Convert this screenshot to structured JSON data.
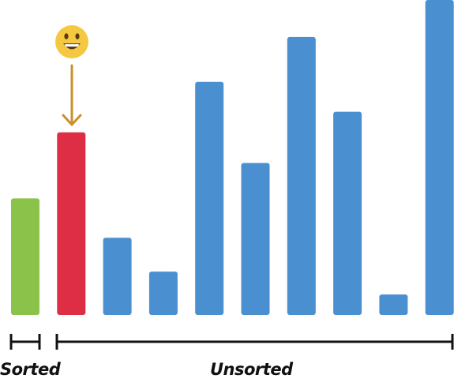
{
  "colors": {
    "sorted": "#8bc34a",
    "current": "#de2e45",
    "unsorted": "#4a90d0",
    "bracket": "#111111",
    "arrow": "#c9912c",
    "smiley_face": "#f5c842",
    "smiley_features": "#5a3a10"
  },
  "icon": {
    "name": "smiley-face-icon"
  },
  "groups": {
    "sorted_label": "Sorted",
    "unsorted_label": "Unsorted"
  },
  "chart_data": {
    "type": "bar",
    "values": [
      148,
      232,
      98,
      55,
      296,
      193,
      353,
      258,
      26,
      400
    ],
    "states": [
      "sorted",
      "current",
      "unsorted",
      "unsorted",
      "unsorted",
      "unsorted",
      "unsorted",
      "unsorted",
      "unsorted",
      "unsorted"
    ],
    "ylim": [
      0,
      400
    ],
    "current_index": 1
  }
}
